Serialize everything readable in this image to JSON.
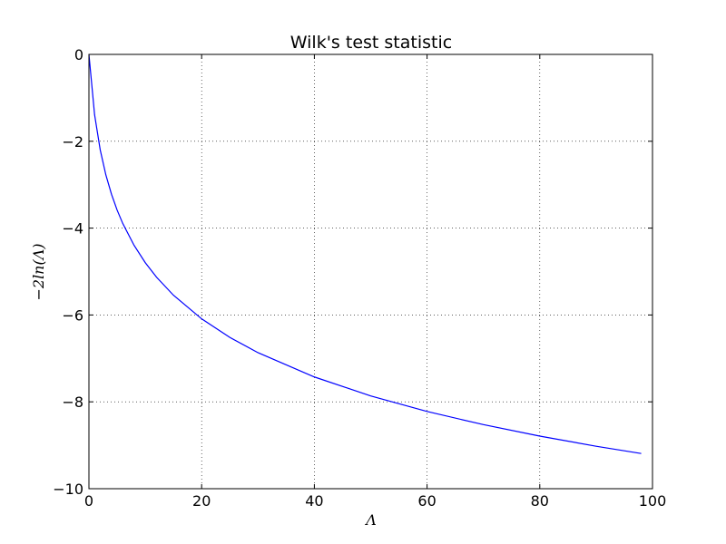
{
  "chart_data": {
    "type": "line",
    "title": "Wilk's test statistic",
    "x_label": "Λ",
    "y_label": "−2ln(Λ)",
    "x": [
      0,
      1,
      2,
      3,
      4,
      5,
      6,
      8,
      10,
      12,
      15,
      20,
      25,
      30,
      40,
      50,
      60,
      70,
      80,
      90,
      98
    ],
    "series": [
      {
        "name": "−2ln(Λ)",
        "color": "#0000ff",
        "values": [
          0,
          -1.386,
          -2.197,
          -2.773,
          -3.219,
          -3.584,
          -3.892,
          -4.394,
          -4.796,
          -5.13,
          -5.545,
          -6.089,
          -6.516,
          -6.868,
          -7.427,
          -7.864,
          -8.222,
          -8.525,
          -8.789,
          -9.022,
          -9.19
        ]
      }
    ],
    "xlim": [
      0,
      100
    ],
    "xticks": [
      0,
      20,
      40,
      60,
      80,
      100
    ],
    "ylim": [
      -10,
      0
    ],
    "yticks": [
      {
        "value": -10,
        "label": "−10"
      },
      {
        "value": -8,
        "label": "−8"
      },
      {
        "value": -6,
        "label": "−6"
      },
      {
        "value": -4,
        "label": "−4"
      },
      {
        "value": -2,
        "label": "−2"
      },
      0
    ],
    "grid": true
  }
}
